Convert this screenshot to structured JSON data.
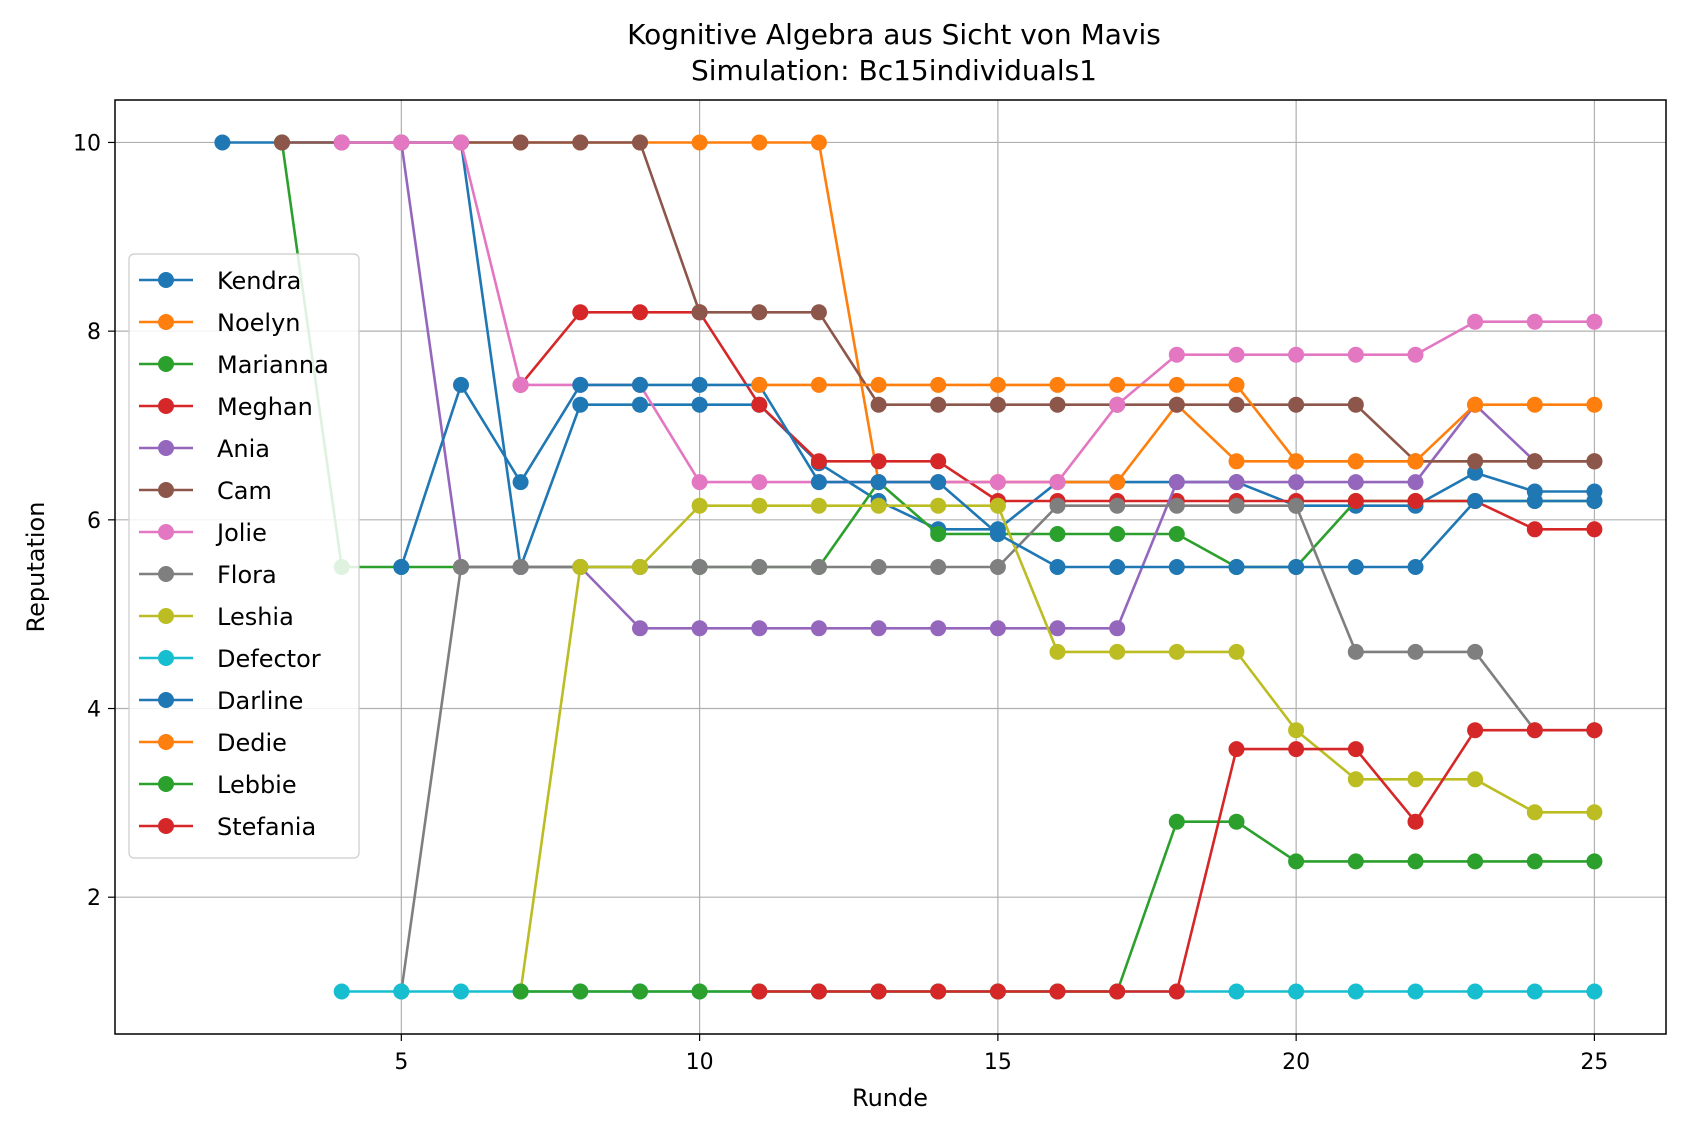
{
  "chart_data": {
    "type": "line",
    "title": "Kognitive Algebra aus Sicht von Mavis",
    "subtitle": "Simulation: Bc15individuals1",
    "xlabel": "Runde",
    "ylabel": "Reputation",
    "xlim": [
      0.2,
      26.2
    ],
    "ylim": [
      0.55,
      10.45
    ],
    "xticks": [
      5,
      10,
      15,
      20,
      25
    ],
    "yticks": [
      2,
      4,
      6,
      8,
      10
    ],
    "grid": true,
    "legend_position": "center-left",
    "x": [
      2,
      3,
      4,
      5,
      6,
      7,
      8,
      9,
      10,
      11,
      12,
      13,
      14,
      15,
      16,
      17,
      18,
      19,
      20,
      21,
      22,
      23,
      24,
      25
    ],
    "series": [
      {
        "name": "Kendra",
        "color": "#1f77b4",
        "values": [
          10,
          10,
          10,
          10,
          10,
          5.5,
          7.22,
          7.22,
          7.22,
          7.22,
          6.6,
          6.2,
          5.9,
          5.9,
          6.4,
          6.4,
          6.4,
          6.4,
          6.15,
          6.15,
          6.15,
          6.5,
          6.3,
          6.3
        ]
      },
      {
        "name": "Noelyn",
        "color": "#ff7f0e",
        "values": [
          null,
          null,
          null,
          null,
          10,
          10,
          10,
          10,
          10,
          10,
          10,
          6.4,
          6.4,
          6.4,
          6.4,
          6.4,
          7.22,
          6.62,
          6.62,
          6.62,
          6.62,
          6.62,
          6.62,
          6.62
        ]
      },
      {
        "name": "Marianna",
        "color": "#2ca02c",
        "values": [
          null,
          10,
          5.5,
          5.5,
          5.5,
          5.5,
          5.5,
          5.5,
          5.5,
          5.5,
          5.5,
          6.4,
          5.85,
          5.85,
          5.85,
          5.85,
          5.85,
          5.5,
          5.5,
          6.2,
          6.2,
          6.2,
          6.2,
          6.2
        ]
      },
      {
        "name": "Meghan",
        "color": "#d62728",
        "values": [
          null,
          null,
          null,
          null,
          null,
          7.43,
          8.2,
          8.2,
          8.2,
          7.22,
          6.62,
          6.62,
          6.62,
          6.2,
          6.2,
          6.2,
          6.2,
          6.2,
          6.2,
          6.2,
          6.2,
          6.2,
          5.9,
          5.9
        ]
      },
      {
        "name": "Ania",
        "color": "#9467bd",
        "values": [
          null,
          null,
          null,
          10,
          5.5,
          5.5,
          5.5,
          4.85,
          4.85,
          4.85,
          4.85,
          4.85,
          4.85,
          4.85,
          4.85,
          4.85,
          6.4,
          6.4,
          6.4,
          6.4,
          6.4,
          7.22,
          6.62,
          6.62
        ]
      },
      {
        "name": "Cam",
        "color": "#8c564b",
        "values": [
          null,
          10,
          10,
          10,
          10,
          10,
          10,
          10,
          8.2,
          8.2,
          8.2,
          7.22,
          7.22,
          7.22,
          7.22,
          7.22,
          7.22,
          7.22,
          7.22,
          7.22,
          6.62,
          6.62,
          6.62,
          6.62
        ]
      },
      {
        "name": "Jolie",
        "color": "#e377c2",
        "values": [
          null,
          null,
          10,
          10,
          10,
          7.43,
          7.43,
          7.43,
          6.4,
          6.4,
          6.4,
          6.4,
          6.4,
          6.4,
          6.4,
          7.22,
          7.75,
          7.75,
          7.75,
          7.75,
          7.75,
          8.1,
          8.1,
          8.1
        ]
      },
      {
        "name": "Flora",
        "color": "#7f7f7f",
        "values": [
          null,
          null,
          null,
          1,
          5.5,
          5.5,
          5.5,
          5.5,
          5.5,
          5.5,
          5.5,
          5.5,
          5.5,
          5.5,
          6.15,
          6.15,
          6.15,
          6.15,
          6.15,
          4.6,
          4.6,
          4.6,
          3.77,
          3.77
        ]
      },
      {
        "name": "Leshia",
        "color": "#bcbd22",
        "values": [
          null,
          null,
          null,
          null,
          null,
          1,
          5.5,
          5.5,
          6.15,
          6.15,
          6.15,
          6.15,
          6.15,
          6.15,
          4.6,
          4.6,
          4.6,
          4.6,
          3.77,
          3.25,
          3.25,
          3.25,
          2.9,
          2.9
        ]
      },
      {
        "name": "Defector",
        "color": "#17becf",
        "values": [
          null,
          null,
          1,
          1,
          1,
          1,
          1,
          1,
          1,
          1,
          1,
          1,
          1,
          1,
          1,
          1,
          1,
          1,
          1,
          1,
          1,
          1,
          1,
          1
        ]
      },
      {
        "name": "Darline",
        "color": "#1f77b4",
        "values": [
          null,
          null,
          null,
          5.5,
          7.43,
          6.4,
          7.43,
          7.43,
          7.43,
          7.43,
          6.4,
          6.4,
          6.4,
          5.85,
          5.5,
          5.5,
          5.5,
          5.5,
          5.5,
          5.5,
          5.5,
          6.2,
          6.2,
          6.2
        ]
      },
      {
        "name": "Dedie",
        "color": "#ff7f0e",
        "values": [
          null,
          null,
          null,
          null,
          null,
          null,
          null,
          null,
          null,
          7.43,
          7.43,
          7.43,
          7.43,
          7.43,
          7.43,
          7.43,
          7.43,
          7.43,
          6.62,
          6.62,
          6.62,
          7.22,
          7.22,
          7.22
        ]
      },
      {
        "name": "Lebbie",
        "color": "#2ca02c",
        "values": [
          null,
          null,
          null,
          null,
          null,
          1,
          1,
          1,
          1,
          1,
          1,
          1,
          1,
          1,
          1,
          1,
          2.8,
          2.8,
          2.38,
          2.38,
          2.38,
          2.38,
          2.38,
          2.38
        ]
      },
      {
        "name": "Stefania",
        "color": "#d62728",
        "values": [
          null,
          null,
          null,
          null,
          null,
          null,
          null,
          null,
          null,
          1,
          1,
          1,
          1,
          1,
          1,
          1,
          1,
          3.57,
          3.57,
          3.57,
          2.8,
          3.77,
          3.77,
          3.77
        ]
      }
    ]
  }
}
